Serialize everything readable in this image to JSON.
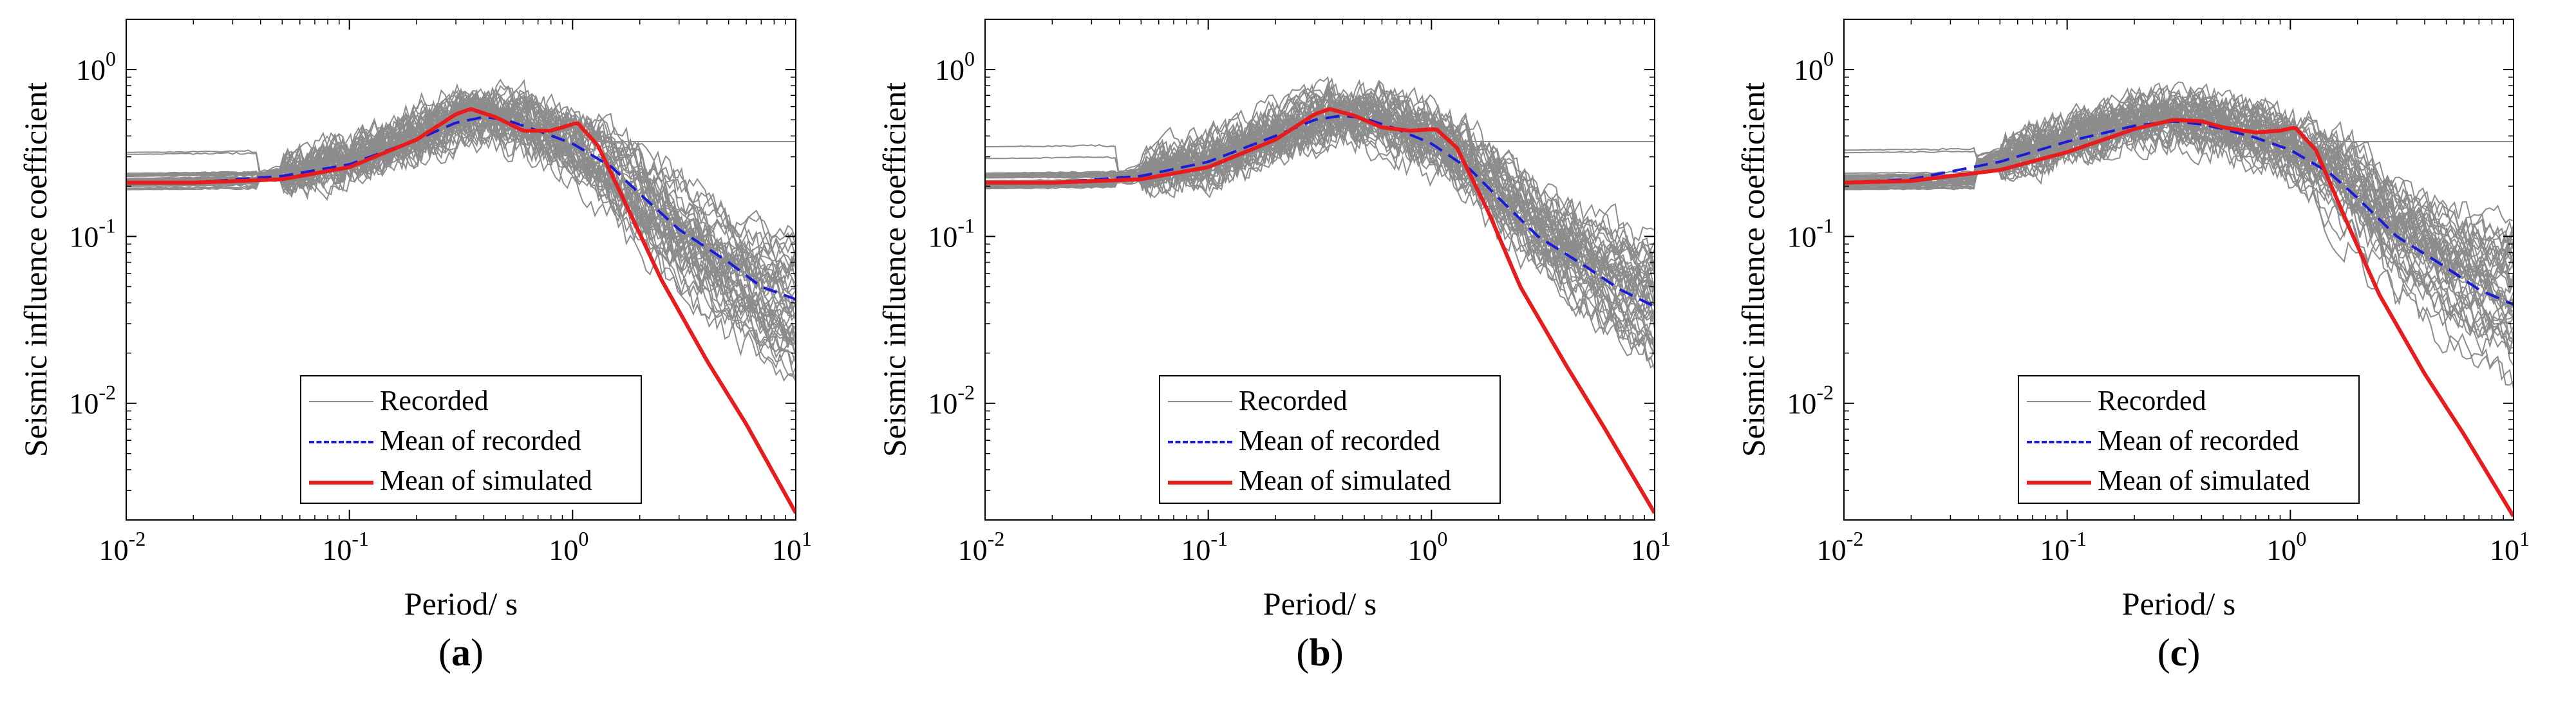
{
  "colors": {
    "recorded": "#8c8c8c",
    "mean_recorded": "#1a1ad9",
    "mean_simulated": "#e81c1c",
    "axis": "#000000"
  },
  "legend": {
    "recorded": "Recorded",
    "mean_recorded": "Mean of recorded",
    "mean_simulated": "Mean of simulated"
  },
  "chart_data": [
    {
      "type": "line",
      "panel_label": "a",
      "xlabel": "Period/ s",
      "ylabel": "Seismic influence coefficient",
      "xscale": "log",
      "yscale": "log",
      "xlim": [
        0.01,
        10
      ],
      "ylim": [
        0.002,
        2
      ],
      "x_ticks": [
        0.01,
        0.1,
        1,
        10
      ],
      "x_tick_labels": [
        {
          "base": "10",
          "exp": "-2"
        },
        {
          "base": "10",
          "exp": "-1"
        },
        {
          "base": "10",
          "exp": "0"
        },
        {
          "base": "10",
          "exp": "1"
        }
      ],
      "y_ticks": [
        0.01,
        0.1,
        1
      ],
      "y_tick_labels": [
        {
          "base": "10",
          "exp": "-2"
        },
        {
          "base": "10",
          "exp": "-1"
        },
        {
          "base": "10",
          "exp": "0"
        }
      ],
      "legend_position": "bottom-center",
      "series": [
        {
          "name": "Mean of recorded",
          "style": "dashed",
          "x": [
            0.01,
            0.02,
            0.05,
            0.1,
            0.2,
            0.3,
            0.4,
            0.5,
            0.7,
            1.0,
            1.5,
            2,
            3,
            5,
            7,
            10
          ],
          "y": [
            0.21,
            0.21,
            0.23,
            0.27,
            0.38,
            0.48,
            0.52,
            0.5,
            0.43,
            0.36,
            0.26,
            0.18,
            0.11,
            0.07,
            0.05,
            0.042
          ]
        },
        {
          "name": "Mean of simulated",
          "style": "solid",
          "x": [
            0.01,
            0.02,
            0.05,
            0.1,
            0.2,
            0.3,
            0.35,
            0.45,
            0.6,
            0.8,
            1.05,
            1.3,
            1.8,
            2.5,
            4,
            6,
            10
          ],
          "y": [
            0.21,
            0.21,
            0.22,
            0.26,
            0.38,
            0.54,
            0.58,
            0.52,
            0.43,
            0.43,
            0.48,
            0.35,
            0.14,
            0.055,
            0.018,
            0.0075,
            0.0022
          ]
        }
      ]
    },
    {
      "type": "line",
      "panel_label": "b",
      "xlabel": "Period/ s",
      "ylabel": "Seismic influence coefficient",
      "xscale": "log",
      "yscale": "log",
      "xlim": [
        0.01,
        10
      ],
      "ylim": [
        0.002,
        2
      ],
      "x_ticks": [
        0.01,
        0.1,
        1,
        10
      ],
      "x_tick_labels": [
        {
          "base": "10",
          "exp": "-2"
        },
        {
          "base": "10",
          "exp": "-1"
        },
        {
          "base": "10",
          "exp": "0"
        },
        {
          "base": "10",
          "exp": "1"
        }
      ],
      "y_ticks": [
        0.01,
        0.1,
        1
      ],
      "y_tick_labels": [
        {
          "base": "10",
          "exp": "-2"
        },
        {
          "base": "10",
          "exp": "-1"
        },
        {
          "base": "10",
          "exp": "0"
        }
      ],
      "legend_position": "bottom-center",
      "series": [
        {
          "name": "Mean of recorded",
          "style": "dashed",
          "x": [
            0.01,
            0.02,
            0.05,
            0.1,
            0.2,
            0.3,
            0.4,
            0.5,
            0.7,
            1.0,
            1.5,
            2,
            3,
            5,
            7,
            10
          ],
          "y": [
            0.21,
            0.21,
            0.23,
            0.28,
            0.4,
            0.5,
            0.53,
            0.51,
            0.44,
            0.36,
            0.25,
            0.17,
            0.1,
            0.065,
            0.048,
            0.038
          ]
        },
        {
          "name": "Mean of simulated",
          "style": "solid",
          "x": [
            0.01,
            0.02,
            0.05,
            0.1,
            0.2,
            0.3,
            0.35,
            0.45,
            0.6,
            0.8,
            1.05,
            1.3,
            1.8,
            2.5,
            4,
            6,
            10
          ],
          "y": [
            0.21,
            0.21,
            0.22,
            0.26,
            0.38,
            0.54,
            0.58,
            0.53,
            0.45,
            0.43,
            0.44,
            0.34,
            0.14,
            0.05,
            0.017,
            0.007,
            0.0022
          ]
        }
      ]
    },
    {
      "type": "line",
      "panel_label": "c",
      "xlabel": "Period/ s",
      "ylabel": "Seismic influence coefficient",
      "xscale": "log",
      "yscale": "log",
      "xlim": [
        0.01,
        10
      ],
      "ylim": [
        0.002,
        2
      ],
      "x_ticks": [
        0.01,
        0.1,
        1,
        10
      ],
      "x_tick_labels": [
        {
          "base": "10",
          "exp": "-2"
        },
        {
          "base": "10",
          "exp": "-1"
        },
        {
          "base": "10",
          "exp": "0"
        },
        {
          "base": "10",
          "exp": "1"
        }
      ],
      "y_ticks": [
        0.01,
        0.1,
        1
      ],
      "y_tick_labels": [
        {
          "base": "10",
          "exp": "-2"
        },
        {
          "base": "10",
          "exp": "-1"
        },
        {
          "base": "10",
          "exp": "0"
        }
      ],
      "legend_position": "bottom-center",
      "series": [
        {
          "name": "Mean of recorded",
          "style": "dashed",
          "x": [
            0.01,
            0.02,
            0.05,
            0.1,
            0.2,
            0.3,
            0.4,
            0.5,
            0.7,
            1.0,
            1.5,
            2,
            3,
            5,
            7,
            10
          ],
          "y": [
            0.21,
            0.22,
            0.28,
            0.37,
            0.46,
            0.49,
            0.47,
            0.44,
            0.39,
            0.33,
            0.24,
            0.17,
            0.1,
            0.065,
            0.048,
            0.039
          ]
        },
        {
          "name": "Mean of simulated",
          "style": "solid",
          "x": [
            0.01,
            0.02,
            0.05,
            0.1,
            0.2,
            0.3,
            0.4,
            0.5,
            0.7,
            0.9,
            1.05,
            1.3,
            1.8,
            2.5,
            4,
            6,
            10
          ],
          "y": [
            0.21,
            0.215,
            0.25,
            0.32,
            0.44,
            0.5,
            0.49,
            0.45,
            0.42,
            0.43,
            0.45,
            0.33,
            0.12,
            0.045,
            0.015,
            0.0065,
            0.0021
          ]
        }
      ]
    }
  ]
}
